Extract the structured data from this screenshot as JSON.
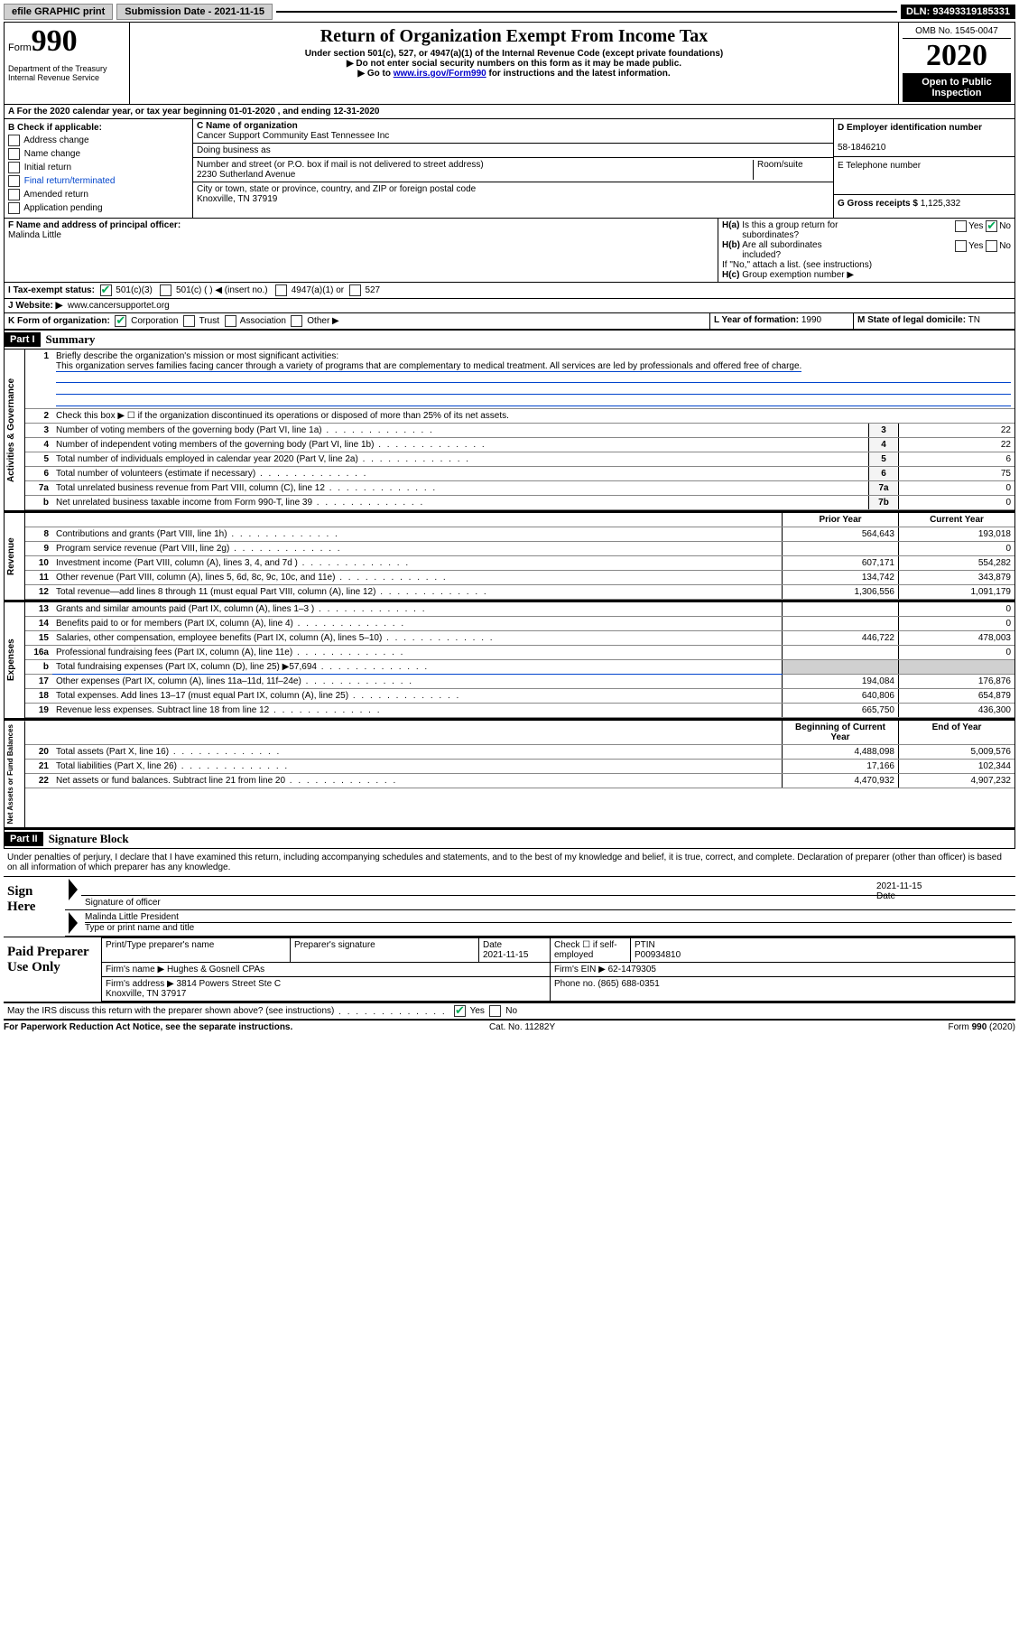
{
  "topbar": {
    "efile": "efile GRAPHIC print",
    "submission_label": "Submission Date - 2021-11-15",
    "dln": "DLN: 93493319185331"
  },
  "header": {
    "form_label": "Form",
    "form_num": "990",
    "dept": "Department of the Treasury",
    "irs": "Internal Revenue Service",
    "title": "Return of Organization Exempt From Income Tax",
    "subtitle": "Under section 501(c), 527, or 4947(a)(1) of the Internal Revenue Code (except private foundations)",
    "note1": "▶ Do not enter social security numbers on this form as it may be made public.",
    "note2_pre": "▶ Go to ",
    "note2_link": "www.irs.gov/Form990",
    "note2_post": " for instructions and the latest information.",
    "omb": "OMB No. 1545-0047",
    "year": "2020",
    "open": "Open to Public Inspection"
  },
  "row_a": "A For the 2020 calendar year, or tax year beginning 01-01-2020   , and ending 12-31-2020",
  "section_b": {
    "title": "B Check if applicable:",
    "items": [
      "Address change",
      "Name change",
      "Initial return",
      "Final return/terminated",
      "Amended return",
      "Application pending"
    ]
  },
  "section_c": {
    "c_label": "C Name of organization",
    "c_val": "Cancer Support Community East Tennessee Inc",
    "dba_label": "Doing business as",
    "dba_val": "",
    "addr_label": "Number and street (or P.O. box if mail is not delivered to street address)",
    "room_label": "Room/suite",
    "addr_val": "2230 Sutherland Avenue",
    "city_label": "City or town, state or province, country, and ZIP or foreign postal code",
    "city_val": "Knoxville, TN  37919"
  },
  "section_d": {
    "label": "D Employer identification number",
    "val": "58-1846210"
  },
  "section_e": {
    "label": "E Telephone number",
    "val": ""
  },
  "section_g": {
    "label": "G Gross receipts $",
    "val": "1,125,332"
  },
  "section_f": {
    "label": "F  Name and address of principal officer:",
    "val": "Malinda Little"
  },
  "section_h": {
    "a_label": "H(a)  Is this a group return for subordinates?",
    "b_label": "H(b)  Are all subordinates included?",
    "b_note": "If \"No,\" attach a list. (see instructions)",
    "c_label": "H(c)  Group exemption number ▶",
    "yes": "Yes",
    "no": "No"
  },
  "row_i": {
    "label": "I   Tax-exempt status:",
    "opts": [
      "501(c)(3)",
      "501(c) (  ) ◀ (insert no.)",
      "4947(a)(1) or",
      "527"
    ]
  },
  "row_j": {
    "label": "J   Website: ▶",
    "val": "www.cancersupportet.org"
  },
  "row_k": {
    "label": "K Form of organization:",
    "opts": [
      "Corporation",
      "Trust",
      "Association",
      "Other ▶"
    ],
    "l_label": "L Year of formation:",
    "l_val": "1990",
    "m_label": "M State of legal domicile:",
    "m_val": "TN"
  },
  "part1": {
    "label": "Part I",
    "title": "Summary",
    "line1_label": "Briefly describe the organization's mission or most significant activities:",
    "line1_text": "This organization serves families facing cancer through a variety of programs that are complementary to medical treatment. All services are led by professionals and offered free of charge.",
    "line2": "Check this box ▶ ☐  if the organization discontinued its operations or disposed of more than 25% of its net assets.",
    "sections": {
      "gov": "Activities & Governance",
      "rev": "Revenue",
      "exp": "Expenses",
      "net": "Net Assets or Fund Balances"
    },
    "col_prior": "Prior Year",
    "col_current": "Current Year",
    "col_boy": "Beginning of Current Year",
    "col_eoy": "End of Year",
    "rows_gov": [
      {
        "n": "3",
        "t": "Number of voting members of the governing body (Part VI, line 1a)",
        "k": "3",
        "v": "22"
      },
      {
        "n": "4",
        "t": "Number of independent voting members of the governing body (Part VI, line 1b)",
        "k": "4",
        "v": "22"
      },
      {
        "n": "5",
        "t": "Total number of individuals employed in calendar year 2020 (Part V, line 2a)",
        "k": "5",
        "v": "6"
      },
      {
        "n": "6",
        "t": "Total number of volunteers (estimate if necessary)",
        "k": "6",
        "v": "75"
      },
      {
        "n": "7a",
        "t": "Total unrelated business revenue from Part VIII, column (C), line 12",
        "k": "7a",
        "v": "0"
      },
      {
        "n": "b",
        "t": "Net unrelated business taxable income from Form 990-T, line 39",
        "k": "7b",
        "v": "0"
      }
    ],
    "rows_rev": [
      {
        "n": "8",
        "t": "Contributions and grants (Part VIII, line 1h)",
        "p": "564,643",
        "c": "193,018"
      },
      {
        "n": "9",
        "t": "Program service revenue (Part VIII, line 2g)",
        "p": "",
        "c": "0"
      },
      {
        "n": "10",
        "t": "Investment income (Part VIII, column (A), lines 3, 4, and 7d )",
        "p": "607,171",
        "c": "554,282"
      },
      {
        "n": "11",
        "t": "Other revenue (Part VIII, column (A), lines 5, 6d, 8c, 9c, 10c, and 11e)",
        "p": "134,742",
        "c": "343,879"
      },
      {
        "n": "12",
        "t": "Total revenue—add lines 8 through 11 (must equal Part VIII, column (A), line 12)",
        "p": "1,306,556",
        "c": "1,091,179"
      }
    ],
    "rows_exp": [
      {
        "n": "13",
        "t": "Grants and similar amounts paid (Part IX, column (A), lines 1–3 )",
        "p": "",
        "c": "0"
      },
      {
        "n": "14",
        "t": "Benefits paid to or for members (Part IX, column (A), line 4)",
        "p": "",
        "c": "0"
      },
      {
        "n": "15",
        "t": "Salaries, other compensation, employee benefits (Part IX, column (A), lines 5–10)",
        "p": "446,722",
        "c": "478,003"
      },
      {
        "n": "16a",
        "t": "Professional fundraising fees (Part IX, column (A), line 11e)",
        "p": "",
        "c": "0"
      },
      {
        "n": "b",
        "t": "Total fundraising expenses (Part IX, column (D), line 25) ▶57,694",
        "p": "shade",
        "c": "shade"
      },
      {
        "n": "17",
        "t": "Other expenses (Part IX, column (A), lines 11a–11d, 11f–24e)",
        "p": "194,084",
        "c": "176,876"
      },
      {
        "n": "18",
        "t": "Total expenses. Add lines 13–17 (must equal Part IX, column (A), line 25)",
        "p": "640,806",
        "c": "654,879"
      },
      {
        "n": "19",
        "t": "Revenue less expenses. Subtract line 18 from line 12",
        "p": "665,750",
        "c": "436,300"
      }
    ],
    "rows_net": [
      {
        "n": "20",
        "t": "Total assets (Part X, line 16)",
        "p": "4,488,098",
        "c": "5,009,576"
      },
      {
        "n": "21",
        "t": "Total liabilities (Part X, line 26)",
        "p": "17,166",
        "c": "102,344"
      },
      {
        "n": "22",
        "t": "Net assets or fund balances. Subtract line 21 from line 20",
        "p": "4,470,932",
        "c": "4,907,232"
      }
    ]
  },
  "part2": {
    "label": "Part II",
    "title": "Signature Block",
    "declaration": "Under penalties of perjury, I declare that I have examined this return, including accompanying schedules and statements, and to the best of my knowledge and belief, it is true, correct, and complete. Declaration of preparer (other than officer) is based on all information of which preparer has any knowledge.",
    "sign_here": "Sign Here",
    "sig_officer": "Signature of officer",
    "date": "Date",
    "date_val": "2021-11-15",
    "name_title_label": "Type or print name and title",
    "name_title_val": "Malinda Little  President",
    "paid": "Paid Preparer Use Only",
    "prep_name_label": "Print/Type preparer's name",
    "prep_sig_label": "Preparer's signature",
    "prep_date_label": "Date",
    "prep_date_val": "2021-11-15",
    "check_self": "Check ☐ if self-employed",
    "ptin_label": "PTIN",
    "ptin_val": "P00934810",
    "firm_name_label": "Firm's name    ▶",
    "firm_name_val": "Hughes & Gosnell CPAs",
    "firm_ein_label": "Firm's EIN ▶",
    "firm_ein_val": "62-1479305",
    "firm_addr_label": "Firm's address ▶",
    "firm_addr_val": "3814 Powers Street Ste C\nKnoxville, TN  37917",
    "phone_label": "Phone no.",
    "phone_val": "(865) 688-0351",
    "may_irs": "May the IRS discuss this return with the preparer shown above? (see instructions)",
    "yes": "Yes",
    "no": "No"
  },
  "footer": {
    "pra": "For Paperwork Reduction Act Notice, see the separate instructions.",
    "cat": "Cat. No. 11282Y",
    "form": "Form 990 (2020)"
  }
}
